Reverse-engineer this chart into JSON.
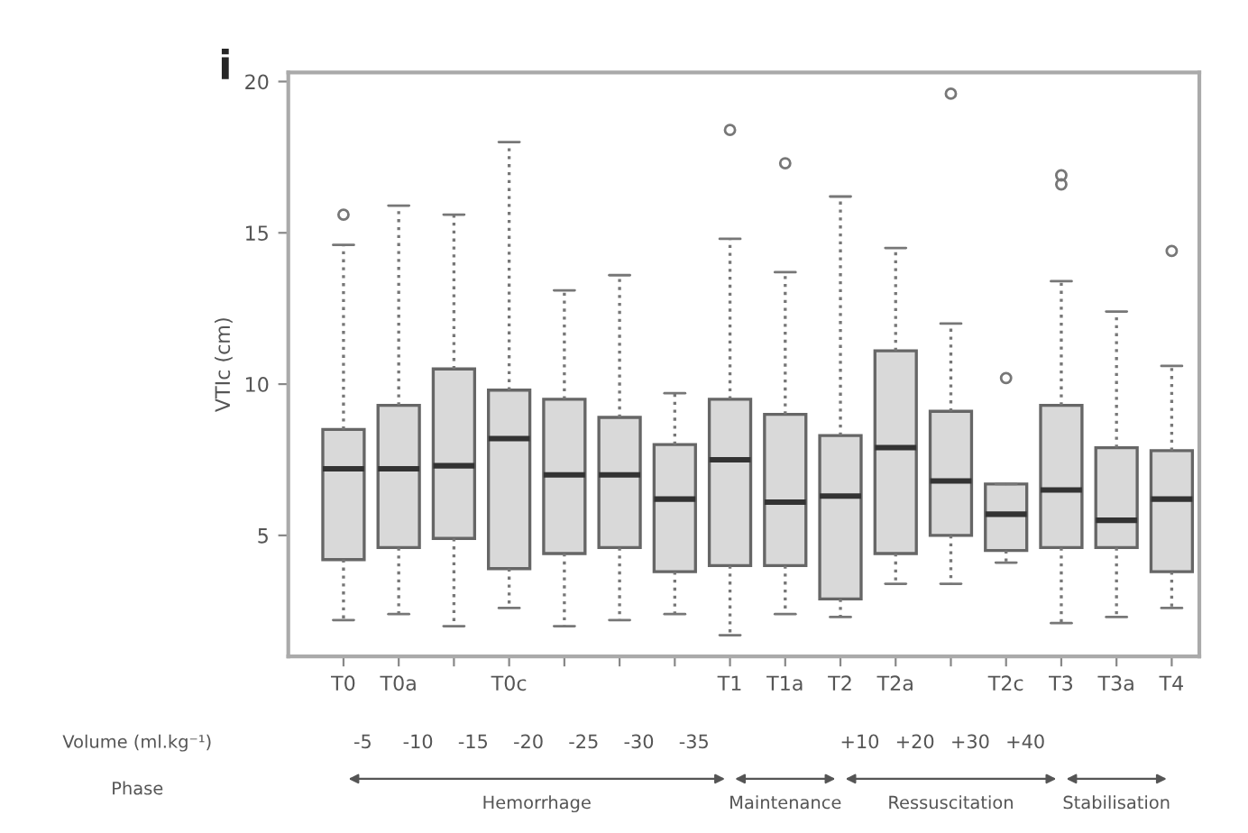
{
  "chart_data": {
    "type": "box",
    "ylabel": "VTIc (cm)",
    "categories": [
      "T0",
      "T0a",
      null,
      "T0c",
      null,
      null,
      null,
      "T1",
      "T1a",
      "T2",
      "T2a",
      null,
      "T2c",
      "T3",
      "T3a",
      "T4"
    ],
    "ylim": [
      1,
      20.3
    ],
    "yticks": [
      5,
      10,
      15,
      20
    ],
    "grid": false,
    "annotations": [
      "i",
      "Volume (ml.kg⁻¹)",
      "-5",
      "-10",
      "-15",
      "-20",
      "-25",
      "-30",
      "-35",
      "+10",
      "+20",
      "+30",
      "+40",
      "Phase",
      "Hemorrhage",
      "Maintenance",
      "Ressuscitation",
      "Stabilisation"
    ],
    "series": [
      {
        "color": "#d9d9d9",
        "boxes": [
          {
            "low": 2.2,
            "q1": 4.2,
            "median": 7.2,
            "q3": 8.5,
            "high": 14.6,
            "outliers": [
              15.6
            ]
          },
          {
            "low": 2.4,
            "q1": 4.6,
            "median": 7.2,
            "q3": 9.3,
            "high": 15.9
          },
          {
            "low": 2.0,
            "q1": 4.9,
            "median": 7.3,
            "q3": 10.5,
            "high": 15.6
          },
          {
            "low": 2.6,
            "q1": 3.9,
            "median": 8.2,
            "q3": 9.8,
            "high": 18.0
          },
          {
            "low": 2.0,
            "q1": 4.4,
            "median": 7.0,
            "q3": 9.5,
            "high": 13.1
          },
          {
            "low": 2.2,
            "q1": 4.6,
            "median": 7.0,
            "q3": 8.9,
            "high": 13.6
          },
          {
            "low": 2.4,
            "q1": 3.8,
            "median": 6.2,
            "q3": 8.0,
            "high": 9.7
          },
          {
            "low": 1.7,
            "q1": 4.0,
            "median": 7.5,
            "q3": 9.5,
            "high": 14.8,
            "outliers": [
              18.4
            ]
          },
          {
            "low": 2.4,
            "q1": 4.0,
            "median": 6.1,
            "q3": 9.0,
            "high": 13.7,
            "outliers": [
              17.3
            ]
          },
          {
            "low": 2.3,
            "q1": 2.9,
            "median": 6.3,
            "q3": 8.3,
            "high": 16.2
          },
          {
            "low": 3.4,
            "q1": 4.4,
            "median": 7.9,
            "q3": 11.1,
            "high": 14.5
          },
          {
            "low": 3.4,
            "q1": 5.0,
            "median": 6.8,
            "q3": 9.1,
            "high": 12.0,
            "outliers": [
              19.6
            ]
          },
          {
            "low": 4.1,
            "q1": 4.5,
            "median": 5.7,
            "q3": 6.7,
            "high": 6.7,
            "outliers": [
              10.2
            ]
          },
          {
            "low": 2.1,
            "q1": 4.6,
            "median": 6.5,
            "q3": 9.3,
            "high": 13.4,
            "outliers": [
              16.6,
              16.9
            ]
          },
          {
            "low": 2.3,
            "q1": 4.6,
            "median": 5.5,
            "q3": 7.9,
            "high": 12.4
          },
          {
            "low": 2.6,
            "q1": 3.8,
            "median": 6.2,
            "q3": 7.8,
            "high": 10.6,
            "outliers": [
              14.4
            ]
          }
        ]
      }
    ]
  }
}
